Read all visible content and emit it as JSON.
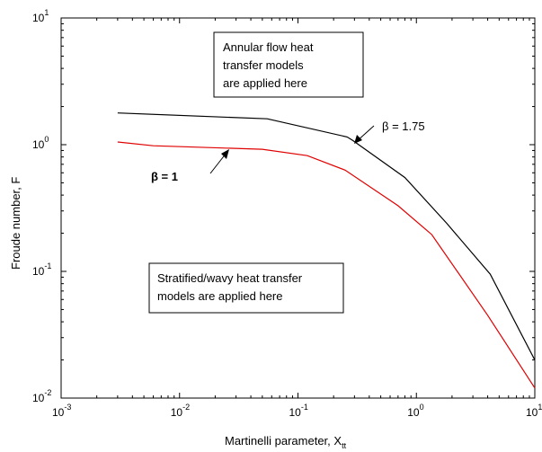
{
  "chart_data": {
    "type": "line",
    "x_scale": "log",
    "y_scale": "log",
    "xlim": [
      0.001,
      10
    ],
    "ylim": [
      0.01,
      10
    ],
    "xlabel": "Martinelli parameter, X",
    "xlabel_sub": "tt",
    "ylabel": "Froude number, F",
    "x_ticks": [
      {
        "value": 0.001,
        "base": "10",
        "exp": "-3"
      },
      {
        "value": 0.01,
        "base": "10",
        "exp": "-2"
      },
      {
        "value": 0.1,
        "base": "10",
        "exp": "-1"
      },
      {
        "value": 1,
        "base": "10",
        "exp": "0"
      },
      {
        "value": 10,
        "base": "10",
        "exp": "1"
      }
    ],
    "y_ticks": [
      {
        "value": 0.01,
        "base": "10",
        "exp": "-2"
      },
      {
        "value": 0.1,
        "base": "10",
        "exp": "-1"
      },
      {
        "value": 1,
        "base": "10",
        "exp": "0"
      },
      {
        "value": 10,
        "base": "10",
        "exp": "1"
      }
    ],
    "grid": false,
    "legend": "none",
    "series": [
      {
        "color": "#000000",
        "x": [
          0.003,
          0.055,
          0.26,
          0.29,
          0.8,
          1.8,
          4.2,
          10
        ],
        "y": [
          1.78,
          1.6,
          1.15,
          1.08,
          0.55,
          0.24,
          0.095,
          0.02
        ]
      },
      {
        "color": "#e00000",
        "x": [
          0.003,
          0.006,
          0.05,
          0.12,
          0.25,
          0.7,
          1.35,
          4.0,
          10
        ],
        "y": [
          1.05,
          0.98,
          0.92,
          0.82,
          0.63,
          0.33,
          0.195,
          0.045,
          0.012
        ]
      }
    ],
    "annotations": {
      "annular_box": [
        "Annular flow heat",
        "transfer models",
        "are applied here"
      ],
      "stratified_box": [
        "Stratified/wavy heat transfer",
        "models are applied here"
      ],
      "beta_175": "β = 1.75",
      "beta_1": "β = 1"
    }
  }
}
